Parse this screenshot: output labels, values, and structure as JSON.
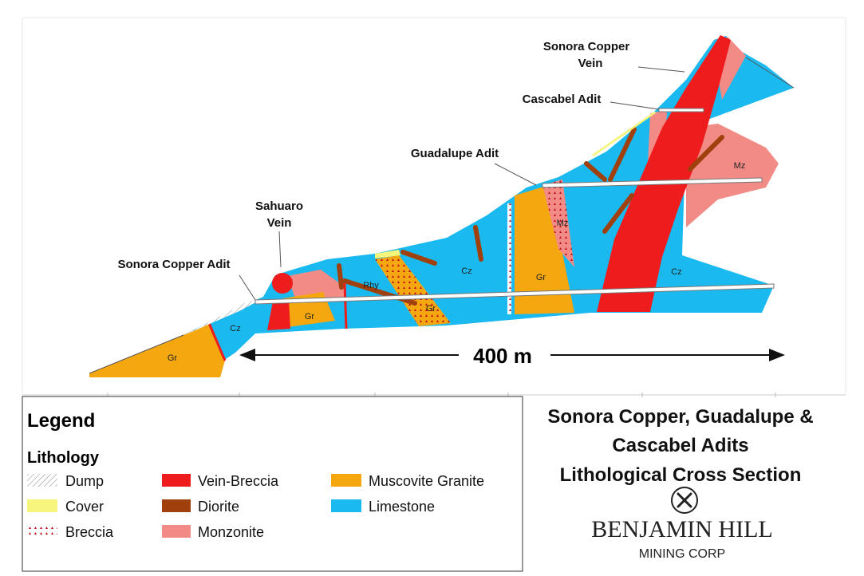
{
  "section": {
    "annotations": [
      {
        "lines": [
          "Sonora Copper",
          "Vein"
        ]
      },
      {
        "lines": [
          "Cascabel Adit"
        ]
      },
      {
        "lines": [
          "Guadalupe Adit"
        ]
      },
      {
        "lines": [
          "Sahuaro",
          "Vein"
        ]
      },
      {
        "lines": [
          "Sonora Copper Adit"
        ]
      }
    ],
    "units": [
      "Gr",
      "Cz",
      "Gr",
      "Rhy",
      "Gr",
      "Cz",
      "Gr",
      "Mz",
      "Mz",
      "Cz"
    ],
    "scale_bar": "400 m"
  },
  "legend": {
    "title": "Legend",
    "subtitle": "Lithology",
    "items": [
      "Dump",
      "Cover",
      "Breccia",
      "Vein-Breccia",
      "Diorite",
      "Monzonite",
      "Muscovite Granite",
      "Limestone"
    ]
  },
  "title": {
    "lines": [
      "Sonora Copper, Guadalupe  &",
      "Cascabel Adits",
      "Lithological Cross Section"
    ]
  },
  "logo": {
    "name": "BENJAMIN HILL",
    "subtitle": "MINING CORP"
  }
}
